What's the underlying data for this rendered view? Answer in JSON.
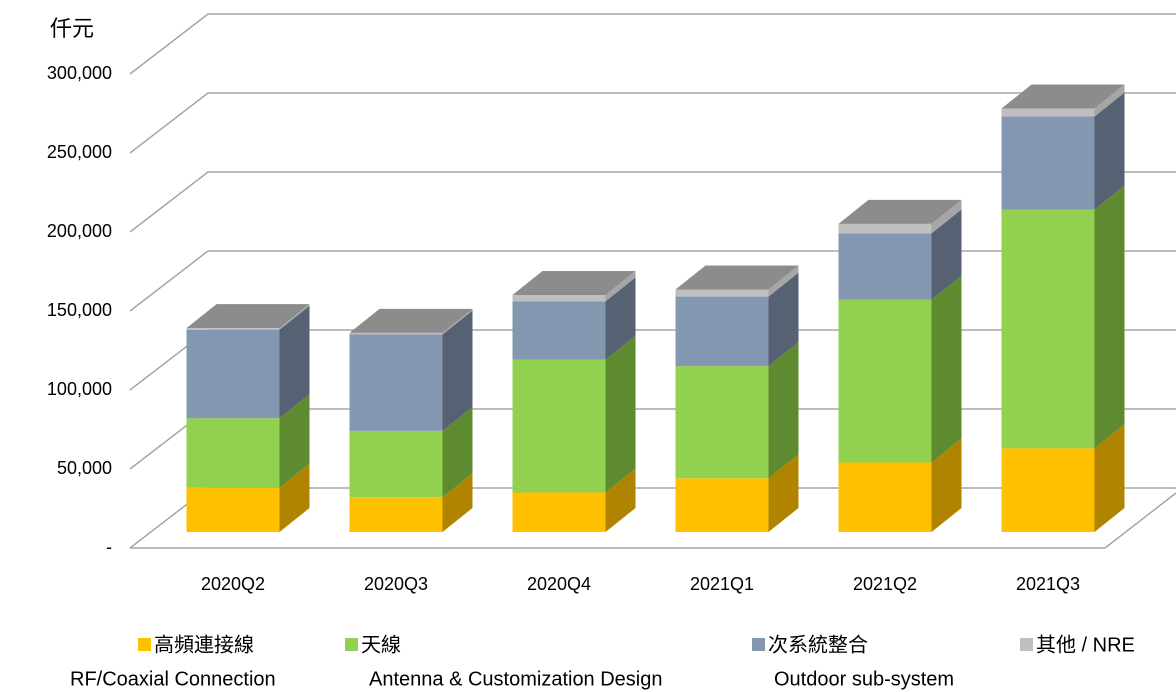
{
  "chart_data": {
    "type": "bar3d_stacked",
    "y_unit": "仟元",
    "categories": [
      "2020Q2",
      "2020Q3",
      "2020Q4",
      "2021Q1",
      "2021Q2",
      "2021Q3"
    ],
    "series": [
      {
        "name": "高頻連接線",
        "name_en": "RF/Coaxial Connection",
        "color": "#ffc000",
        "side_color": "#b08400",
        "values": [
          28000,
          22000,
          25000,
          34000,
          44000,
          53000
        ]
      },
      {
        "name": "天線",
        "name_en": "Antenna & Customization Design",
        "color": "#92d050",
        "side_color": "#5e8a30",
        "values": [
          44000,
          42000,
          84000,
          71000,
          103000,
          151000
        ]
      },
      {
        "name": "次系統整合",
        "name_en": "Outdoor sub-system",
        "color": "#8497b0",
        "side_color": "#566173",
        "values": [
          56000,
          61000,
          37000,
          44000,
          42000,
          59000
        ]
      },
      {
        "name": "其他 / NRE",
        "color": "#bfbfbf",
        "side_color": "#a6a6a6",
        "values": [
          1000,
          1000,
          4000,
          4500,
          6000,
          5000
        ]
      }
    ],
    "top_color": "#8c8c8c",
    "ylim": [
      0,
      300000
    ],
    "yticks": [
      {
        "value": 0,
        "label": "-"
      },
      {
        "value": 50000,
        "label": "50,000"
      },
      {
        "value": 100000,
        "label": "100,000"
      },
      {
        "value": 150000,
        "label": "150,000"
      },
      {
        "value": 200000,
        "label": "200,000"
      },
      {
        "value": 250000,
        "label": "250,000"
      },
      {
        "value": 300000,
        "label": "300,000"
      }
    ],
    "grid": true
  }
}
